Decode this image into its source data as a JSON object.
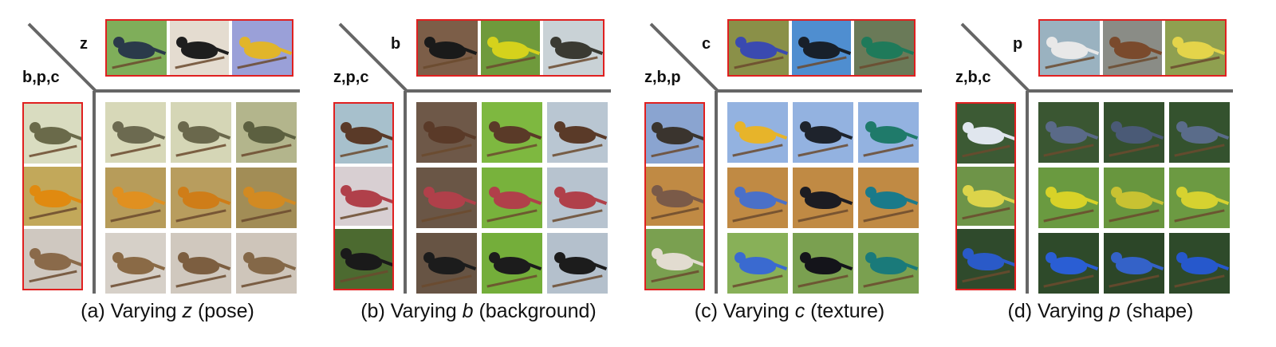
{
  "panels": [
    {
      "top_label": "z",
      "left_label": "b,p,c",
      "caption": {
        "prefix": "(a) Varying ",
        "var": "z",
        "suffix": " (pose)"
      },
      "top_images": [
        {
          "bg": "#7fae5a",
          "bird": "#2a3a4a"
        },
        {
          "bg": "#e4dcd0",
          "bird": "#1e1e1e"
        },
        {
          "bg": "#9aa0d8",
          "bird": "#e1b52a"
        }
      ],
      "left_images": [
        {
          "bg": "#d9dcc0",
          "bird": "#6a6a4a"
        },
        {
          "bg": "#c2a85a",
          "bird": "#e08a10"
        },
        {
          "bg": "#cfc8c0",
          "bird": "#8a6a4a"
        }
      ],
      "grid": [
        [
          {
            "bg": "#d7d8b8",
            "bird": "#6c6a50"
          },
          {
            "bg": "#d5d6b6",
            "bird": "#6a684c"
          },
          {
            "bg": "#b3b58c",
            "bird": "#5c6040"
          }
        ],
        [
          {
            "bg": "#b79c5a",
            "bird": "#e09020"
          },
          {
            "bg": "#b89d5e",
            "bird": "#cf7d18"
          },
          {
            "bg": "#a28d56",
            "bird": "#d28a22"
          }
        ],
        [
          {
            "bg": "#d6d0c8",
            "bird": "#8a6a46"
          },
          {
            "bg": "#d0c8be",
            "bird": "#7c5e40"
          },
          {
            "bg": "#cec5ba",
            "bird": "#846848"
          }
        ]
      ]
    },
    {
      "top_label": "b",
      "left_label": "z,p,c",
      "caption": {
        "prefix": "(b) Varying ",
        "var": "b",
        "suffix": " (background)"
      },
      "top_images": [
        {
          "bg": "#7c5e48",
          "bird": "#1a1a1a"
        },
        {
          "bg": "#6f9a3c",
          "bird": "#d5d21c"
        },
        {
          "bg": "#c9d2d6",
          "bird": "#3a3a32"
        }
      ],
      "left_images": [
        {
          "bg": "#a7c0cc",
          "bird": "#5a3a28"
        },
        {
          "bg": "#d8cfd2",
          "bird": "#b0404a"
        },
        {
          "bg": "#4c6a30",
          "bird": "#1a1a1a"
        }
      ],
      "grid": [
        [
          {
            "bg": "#6e5848",
            "bird": "#5a3a28"
          },
          {
            "bg": "#7eb840",
            "bird": "#5a3a28"
          },
          {
            "bg": "#b9c6d2",
            "bird": "#5a3a28"
          }
        ],
        [
          {
            "bg": "#6a5646",
            "bird": "#b0404a"
          },
          {
            "bg": "#78b23c",
            "bird": "#b0404a"
          },
          {
            "bg": "#b7c3cf",
            "bird": "#b0404a"
          }
        ],
        [
          {
            "bg": "#675444",
            "bird": "#1c1c1c"
          },
          {
            "bg": "#74ae3a",
            "bird": "#1c1c1c"
          },
          {
            "bg": "#b4c0cc",
            "bird": "#1c1c1c"
          }
        ]
      ]
    },
    {
      "top_label": "c",
      "left_label": "z,b,p",
      "caption": {
        "prefix": "(c) Varying ",
        "var": "c",
        "suffix": " (texture)"
      },
      "top_images": [
        {
          "bg": "#8a9048",
          "bird": "#3a4ab0"
        },
        {
          "bg": "#4f8ed0",
          "bird": "#18202a"
        },
        {
          "bg": "#6a7a58",
          "bird": "#1f7a5a"
        }
      ],
      "left_images": [
        {
          "bg": "#8aa4d0",
          "bird": "#3a342e"
        },
        {
          "bg": "#c08a44",
          "bird": "#7a5a48"
        },
        {
          "bg": "#7aa050",
          "bird": "#e2dcd0"
        }
      ],
      "grid": [
        [
          {
            "bg": "#93b2e0",
            "bird": "#e7b42a"
          },
          {
            "bg": "#93b2e0",
            "bird": "#1e232c"
          },
          {
            "bg": "#93b2e0",
            "bird": "#1f7a6a"
          }
        ],
        [
          {
            "bg": "#c08a44",
            "bird": "#4a70c8"
          },
          {
            "bg": "#c08a44",
            "bird": "#1c1c22"
          },
          {
            "bg": "#c08a44",
            "bird": "#1a7a8a"
          }
        ],
        [
          {
            "bg": "#88b058",
            "bird": "#3a6ad0"
          },
          {
            "bg": "#7aa050",
            "bird": "#14141a"
          },
          {
            "bg": "#7aa050",
            "bird": "#1a7a7a"
          }
        ]
      ]
    },
    {
      "top_label": "p",
      "left_label": "z,b,c",
      "caption": {
        "prefix": "(d) Varying ",
        "var": "p",
        "suffix": " (shape)"
      },
      "top_images": [
        {
          "bg": "#9ab2c0",
          "bird": "#e8e8e8"
        },
        {
          "bg": "#8a8c86",
          "bird": "#7a4a2c"
        },
        {
          "bg": "#8fa050",
          "bird": "#e4d44a"
        }
      ],
      "left_images": [
        {
          "bg": "#3c5a34",
          "bird": "#e0e6ee"
        },
        {
          "bg": "#6e9448",
          "bird": "#dcd44a"
        },
        {
          "bg": "#2f4a2c",
          "bird": "#2a5ac8"
        }
      ],
      "grid": [
        [
          {
            "bg": "#3a5632",
            "bird": "#5a6a88"
          },
          {
            "bg": "#34502e",
            "bird": "#4a5a76"
          },
          {
            "bg": "#34522e",
            "bird": "#5a6c8a"
          }
        ],
        [
          {
            "bg": "#6a9a40",
            "bird": "#d8d228"
          },
          {
            "bg": "#68963e",
            "bird": "#c8c232"
          },
          {
            "bg": "#6c9a42",
            "bird": "#d6d230"
          }
        ],
        [
          {
            "bg": "#2e4a2a",
            "bird": "#2a5ed4"
          },
          {
            "bg": "#2c4628",
            "bird": "#3462c8"
          },
          {
            "bg": "#2e4a2a",
            "bird": "#2658cc"
          }
        ]
      ]
    }
  ]
}
